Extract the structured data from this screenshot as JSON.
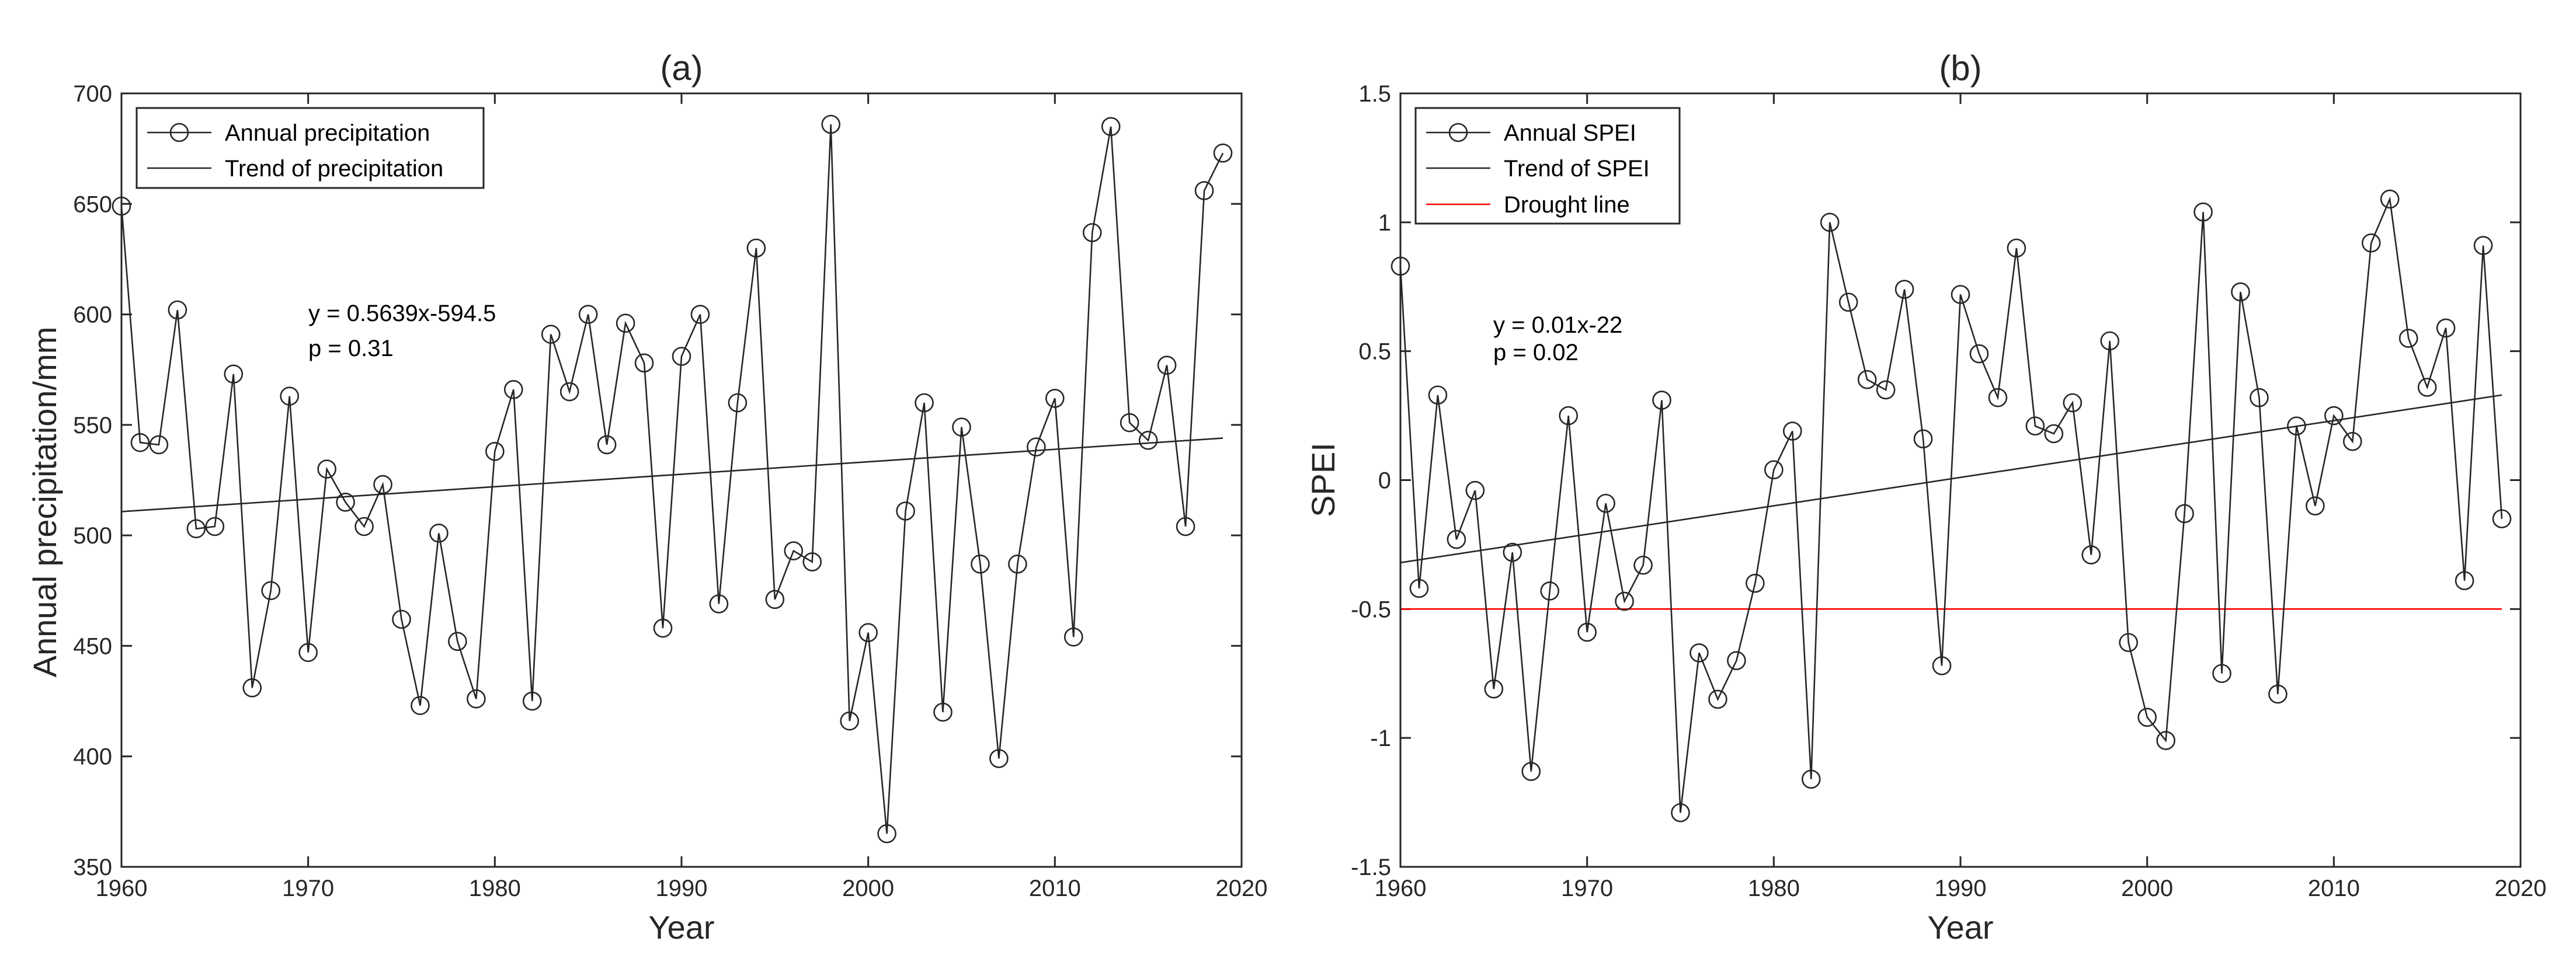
{
  "chart_data": [
    {
      "type": "line",
      "title": "(a)",
      "xlabel": "Year",
      "ylabel": "Annual precipitation/mm",
      "xlim": [
        1960,
        2020
      ],
      "ylim": [
        350,
        700
      ],
      "xticks": [
        1960,
        1970,
        1980,
        1990,
        2000,
        2010,
        2020
      ],
      "yticks": [
        350,
        400,
        450,
        500,
        550,
        600,
        650,
        700
      ],
      "grid": false,
      "legend_position": "top-left",
      "legend": [
        "Annual precipitation",
        "Trend of precipitation"
      ],
      "annotations": [
        "y = 0.5639x-594.5",
        "p = 0.31"
      ],
      "x": [
        1960,
        1961,
        1962,
        1963,
        1964,
        1965,
        1966,
        1967,
        1968,
        1969,
        1970,
        1971,
        1972,
        1973,
        1974,
        1975,
        1976,
        1977,
        1978,
        1979,
        1980,
        1981,
        1982,
        1983,
        1984,
        1985,
        1986,
        1987,
        1988,
        1989,
        1990,
        1991,
        1992,
        1993,
        1994,
        1995,
        1996,
        1997,
        1998,
        1999,
        2000,
        2001,
        2002,
        2003,
        2004,
        2005,
        2006,
        2007,
        2008,
        2009,
        2010,
        2011,
        2012,
        2013,
        2014,
        2015,
        2016,
        2017,
        2018,
        2019
      ],
      "series": [
        {
          "name": "Annual precipitation",
          "values": [
            649,
            542,
            541,
            602,
            503,
            504,
            573,
            431,
            475,
            563,
            447,
            530,
            515,
            504,
            523,
            462,
            423,
            501,
            452,
            426,
            538,
            566,
            425,
            591,
            565,
            600,
            541,
            596,
            578,
            458,
            581,
            600,
            469,
            560,
            630,
            471,
            493,
            488,
            686,
            416,
            456,
            365,
            511,
            560,
            420,
            549,
            487,
            399,
            487,
            540,
            562,
            454,
            637,
            685,
            551,
            543,
            577,
            504,
            656,
            673
          ]
        }
      ],
      "trend": {
        "name": "Trend of precipitation",
        "slope": 0.5639,
        "intercept": -594.5,
        "x_range": [
          1960,
          2019
        ]
      }
    },
    {
      "type": "line",
      "title": "(b)",
      "xlabel": "Year",
      "ylabel": "SPEI",
      "xlim": [
        1960,
        2020
      ],
      "ylim": [
        -1.5,
        1.5
      ],
      "xticks": [
        1960,
        1970,
        1980,
        1990,
        2000,
        2010,
        2020
      ],
      "yticks": [
        -1.5,
        -1,
        -0.5,
        0,
        0.5,
        1,
        1.5
      ],
      "ytick_labels": [
        "-1.5",
        "-1",
        "-0.5",
        "0",
        "0.5",
        "1",
        "1.5"
      ],
      "grid": false,
      "legend_position": "top-left",
      "legend": [
        "Annual SPEI",
        "Trend of SPEI",
        "Drought line"
      ],
      "annotations": [
        "y = 0.01x-22",
        "p = 0.02"
      ],
      "x": [
        1960,
        1961,
        1962,
        1963,
        1964,
        1965,
        1966,
        1967,
        1968,
        1969,
        1970,
        1971,
        1972,
        1973,
        1974,
        1975,
        1976,
        1977,
        1978,
        1979,
        1980,
        1981,
        1982,
        1983,
        1984,
        1985,
        1986,
        1987,
        1988,
        1989,
        1990,
        1991,
        1992,
        1993,
        1994,
        1995,
        1996,
        1997,
        1998,
        1999,
        2000,
        2001,
        2002,
        2003,
        2004,
        2005,
        2006,
        2007,
        2008,
        2009,
        2010,
        2011,
        2012,
        2013,
        2014,
        2015,
        2016,
        2017,
        2018,
        2019
      ],
      "series": [
        {
          "name": "Annual SPEI",
          "values": [
            0.83,
            -0.42,
            0.33,
            -0.23,
            -0.04,
            -0.81,
            -0.28,
            -1.13,
            -0.43,
            0.25,
            -0.59,
            -0.09,
            -0.47,
            -0.33,
            0.31,
            -1.29,
            -0.67,
            -0.85,
            -0.7,
            -0.4,
            0.04,
            0.19,
            -1.16,
            1.0,
            0.69,
            0.39,
            0.35,
            0.74,
            0.16,
            -0.72,
            0.72,
            0.49,
            0.32,
            0.9,
            0.21,
            0.18,
            0.3,
            -0.29,
            0.54,
            -0.63,
            -0.92,
            -1.01,
            -0.13,
            1.04,
            -0.75,
            0.73,
            0.32,
            -0.83,
            0.21,
            -0.1,
            0.25,
            0.15,
            0.92,
            1.09,
            0.55,
            0.36,
            0.59,
            -0.39,
            0.91,
            -0.15
          ]
        }
      ],
      "trend": {
        "name": "Trend of SPEI",
        "start": [
          1960,
          -0.32
        ],
        "end": [
          2019,
          0.33
        ]
      },
      "reference_line": {
        "name": "Drought line",
        "y": -0.5,
        "color": "#ff0000",
        "x_range": [
          1960,
          2019
        ]
      }
    }
  ]
}
